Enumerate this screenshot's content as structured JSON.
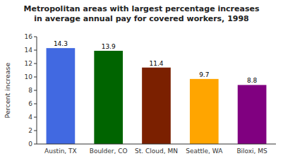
{
  "chart_data": {
    "type": "bar",
    "title": "Metropolitan areas with largest percentage increases\nin average annual pay for covered workers, 1998",
    "ylabel": "Percent increase",
    "categories": [
      "Austin, TX",
      "Boulder, CO",
      "St. Cloud, MN",
      "Seattle, WA",
      "Biloxi, MS"
    ],
    "values": [
      14.3,
      13.9,
      11.4,
      9.7,
      8.8
    ],
    "colors": [
      "#4169E1",
      "#006400",
      "#7B2000",
      "#FFA500",
      "#800080"
    ],
    "ylim": [
      0,
      16
    ],
    "yticks": [
      0,
      2,
      4,
      6,
      8,
      10,
      12,
      14,
      16
    ],
    "grid": false,
    "data_labels": true
  }
}
